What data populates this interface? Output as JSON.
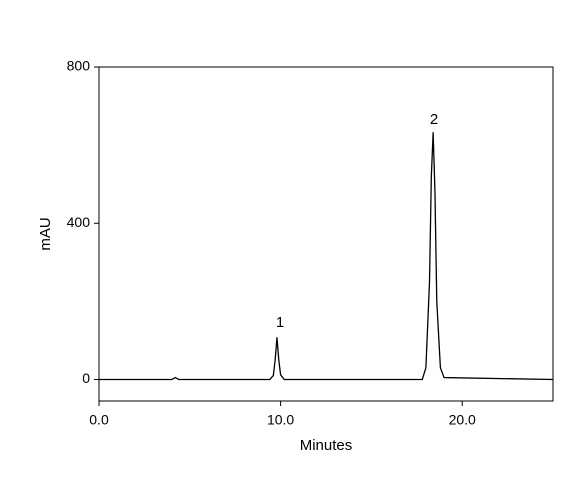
{
  "chart_data": {
    "type": "line",
    "x_label": "Minutes",
    "y_label": "mAU",
    "x": [
      0,
      4.0,
      4.2,
      4.4,
      4.8,
      9.4,
      9.6,
      9.7,
      9.8,
      9.9,
      10.0,
      10.2,
      17.8,
      18.0,
      18.2,
      18.3,
      18.4,
      18.5,
      18.6,
      18.8,
      19.0,
      25
    ],
    "series": [
      {
        "color": "#000000",
        "values": [
          0,
          0,
          5,
          0,
          0,
          0,
          10,
          50,
          107,
          50,
          12,
          0,
          0,
          30,
          250,
          520,
          632,
          480,
          200,
          30,
          5,
          0
        ]
      }
    ],
    "xlim": [
      0,
      25
    ],
    "ylim": [
      -55,
      800
    ],
    "xticks": [
      {
        "value": 0,
        "label": "0.0"
      },
      {
        "value": 10,
        "label": "10.0"
      },
      {
        "value": 20,
        "label": "20.0"
      }
    ],
    "yticks": [
      0,
      400,
      800
    ],
    "annotations": [
      "1",
      "2"
    ]
  }
}
